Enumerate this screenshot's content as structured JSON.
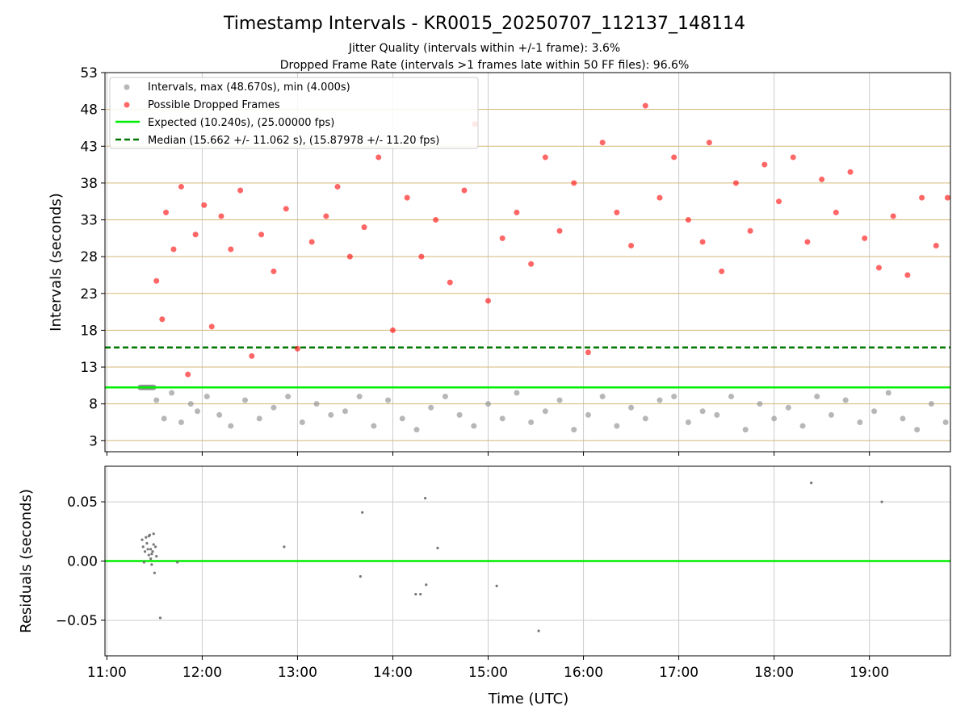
{
  "figure": {
    "title": "Timestamp Intervals - KR0015_20250707_112137_148114",
    "subtitle1": "Jitter Quality (intervals within +/-1 frame): 3.6%",
    "subtitle2": "Dropped Frame Rate (intervals >1 frames late within 50 FF files): 96.6%"
  },
  "chart_data": [
    {
      "type": "scatter",
      "title": "Timestamp Intervals - KR0015_20250707_112137_148114",
      "ylabel": "Intervals (seconds)",
      "xlabel": "",
      "xlim_hours": [
        10.98,
        19.85
      ],
      "ylim": [
        1.5,
        53
      ],
      "yticks": [
        3,
        8,
        13,
        18,
        23,
        28,
        33,
        38,
        43,
        48,
        53
      ],
      "grid": true,
      "legend_position": "upper-left",
      "legend": [
        "Intervals, max (48.670s), min (4.000s)",
        "Possible Dropped Frames",
        "Expected (10.240s), (25.00000 fps)",
        "Median (15.662 +/- 11.062 s), (15.87978 +/- 11.20 fps)"
      ],
      "lines": {
        "expected": 10.24,
        "median": 15.662
      },
      "colors": {
        "intervals": "#999999",
        "dropped": "#ff0000",
        "expected": "#00ee00",
        "median": "#007700",
        "hgrid": "#d4b87a"
      },
      "series": [
        {
          "name": "Possible Dropped Frames",
          "x": [
            11.52,
            11.58,
            11.62,
            11.7,
            11.78,
            11.85,
            11.93,
            12.02,
            12.1,
            12.2,
            12.3,
            12.4,
            12.52,
            12.62,
            12.75,
            12.88,
            13.0,
            13.15,
            13.3,
            13.42,
            13.55,
            13.7,
            13.85,
            14.0,
            14.15,
            14.3,
            14.45,
            14.6,
            14.75,
            14.86,
            15.0,
            15.15,
            15.3,
            15.45,
            15.6,
            15.75,
            15.9,
            16.05,
            16.2,
            16.35,
            16.5,
            16.65,
            16.8,
            16.95,
            17.1,
            17.25,
            17.32,
            17.45,
            17.6,
            17.75,
            17.9,
            18.05,
            18.2,
            18.35,
            18.5,
            18.65,
            18.8,
            18.95,
            19.1,
            19.25,
            19.4,
            19.55,
            19.7,
            19.82
          ],
          "y": [
            24.7,
            19.5,
            34.0,
            29.0,
            37.5,
            12.0,
            31.0,
            35.0,
            18.5,
            33.5,
            29.0,
            37.0,
            14.5,
            31.0,
            26.0,
            34.5,
            15.5,
            30.0,
            33.5,
            37.5,
            28.0,
            32.0,
            41.5,
            18.0,
            36.0,
            28.0,
            33.0,
            24.5,
            37.0,
            46.0,
            22.0,
            30.5,
            34.0,
            27.0,
            41.5,
            31.5,
            38.0,
            15.0,
            43.5,
            34.0,
            29.5,
            48.5,
            36.0,
            41.5,
            33.0,
            30.0,
            43.5,
            26.0,
            38.0,
            31.5,
            40.5,
            35.5,
            41.5,
            30.0,
            38.5,
            34.0,
            39.5,
            30.5,
            26.5,
            33.5,
            25.5,
            36.0,
            29.5,
            36.0
          ]
        },
        {
          "name": "Intervals",
          "x": [
            11.52,
            11.6,
            11.68,
            11.78,
            11.88,
            11.95,
            12.05,
            12.18,
            12.3,
            12.45,
            12.6,
            12.75,
            12.9,
            13.05,
            13.2,
            13.35,
            13.5,
            13.65,
            13.8,
            13.95,
            14.1,
            14.25,
            14.4,
            14.55,
            14.7,
            14.85,
            15.0,
            15.15,
            15.3,
            15.45,
            15.6,
            15.75,
            15.9,
            16.05,
            16.2,
            16.35,
            16.5,
            16.65,
            16.8,
            16.95,
            17.1,
            17.25,
            17.4,
            17.55,
            17.7,
            17.85,
            18.0,
            18.15,
            18.3,
            18.45,
            18.6,
            18.75,
            18.9,
            19.05,
            19.2,
            19.35,
            19.5,
            19.65,
            19.8
          ],
          "y": [
            8.5,
            6.0,
            9.5,
            5.5,
            8.0,
            7.0,
            9.0,
            6.5,
            5.0,
            8.5,
            6.0,
            7.5,
            9.0,
            5.5,
            8.0,
            6.5,
            7.0,
            9.0,
            5.0,
            8.5,
            6.0,
            4.5,
            7.5,
            9.0,
            6.5,
            5.0,
            8.0,
            6.0,
            9.5,
            5.5,
            7.0,
            8.5,
            4.5,
            6.5,
            9.0,
            5.0,
            7.5,
            6.0,
            8.5,
            9.0,
            5.5,
            7.0,
            6.5,
            9.0,
            4.5,
            8.0,
            6.0,
            7.5,
            5.0,
            9.0,
            6.5,
            8.5,
            5.5,
            7.0,
            9.5,
            6.0,
            4.5,
            8.0,
            5.5
          ]
        }
      ]
    },
    {
      "type": "scatter",
      "ylabel": "Residuals (seconds)",
      "xlabel": "Time (UTC)",
      "xlim_hours": [
        10.98,
        19.85
      ],
      "ylim": [
        -0.08,
        0.08
      ],
      "yticks": [
        "0.05",
        "0.00",
        "−0.05"
      ],
      "xticks": [
        "11:00",
        "12:00",
        "13:00",
        "14:00",
        "15:00",
        "16:00",
        "17:00",
        "18:00",
        "19:00"
      ],
      "grid": true,
      "reference_line": 0.0,
      "colors": {
        "points": "#777777",
        "reference": "#00ee00"
      },
      "series": [
        {
          "name": "Residuals",
          "x": [
            11.37,
            11.38,
            11.4,
            11.41,
            11.42,
            11.43,
            11.44,
            11.45,
            11.46,
            11.47,
            11.48,
            11.49,
            11.5,
            11.39,
            11.44,
            11.46,
            11.47,
            11.49,
            11.51,
            11.52,
            11.56,
            11.74,
            12.86,
            13.68,
            13.66,
            14.24,
            14.29,
            14.34,
            14.35,
            14.47,
            15.09,
            15.53,
            18.39,
            19.13
          ],
          "y": [
            0.018,
            0.012,
            0.008,
            0.02,
            0.015,
            0.01,
            0.005,
            0.022,
            0.002,
            -0.003,
            0.008,
            0.014,
            -0.01,
            -0.001,
            0.021,
            0.01,
            0.006,
            0.023,
            0.012,
            0.004,
            -0.048,
            -0.001,
            0.012,
            0.041,
            -0.013,
            -0.028,
            -0.028,
            0.053,
            -0.02,
            0.011,
            -0.021,
            -0.059,
            0.066,
            0.05
          ]
        }
      ]
    }
  ]
}
